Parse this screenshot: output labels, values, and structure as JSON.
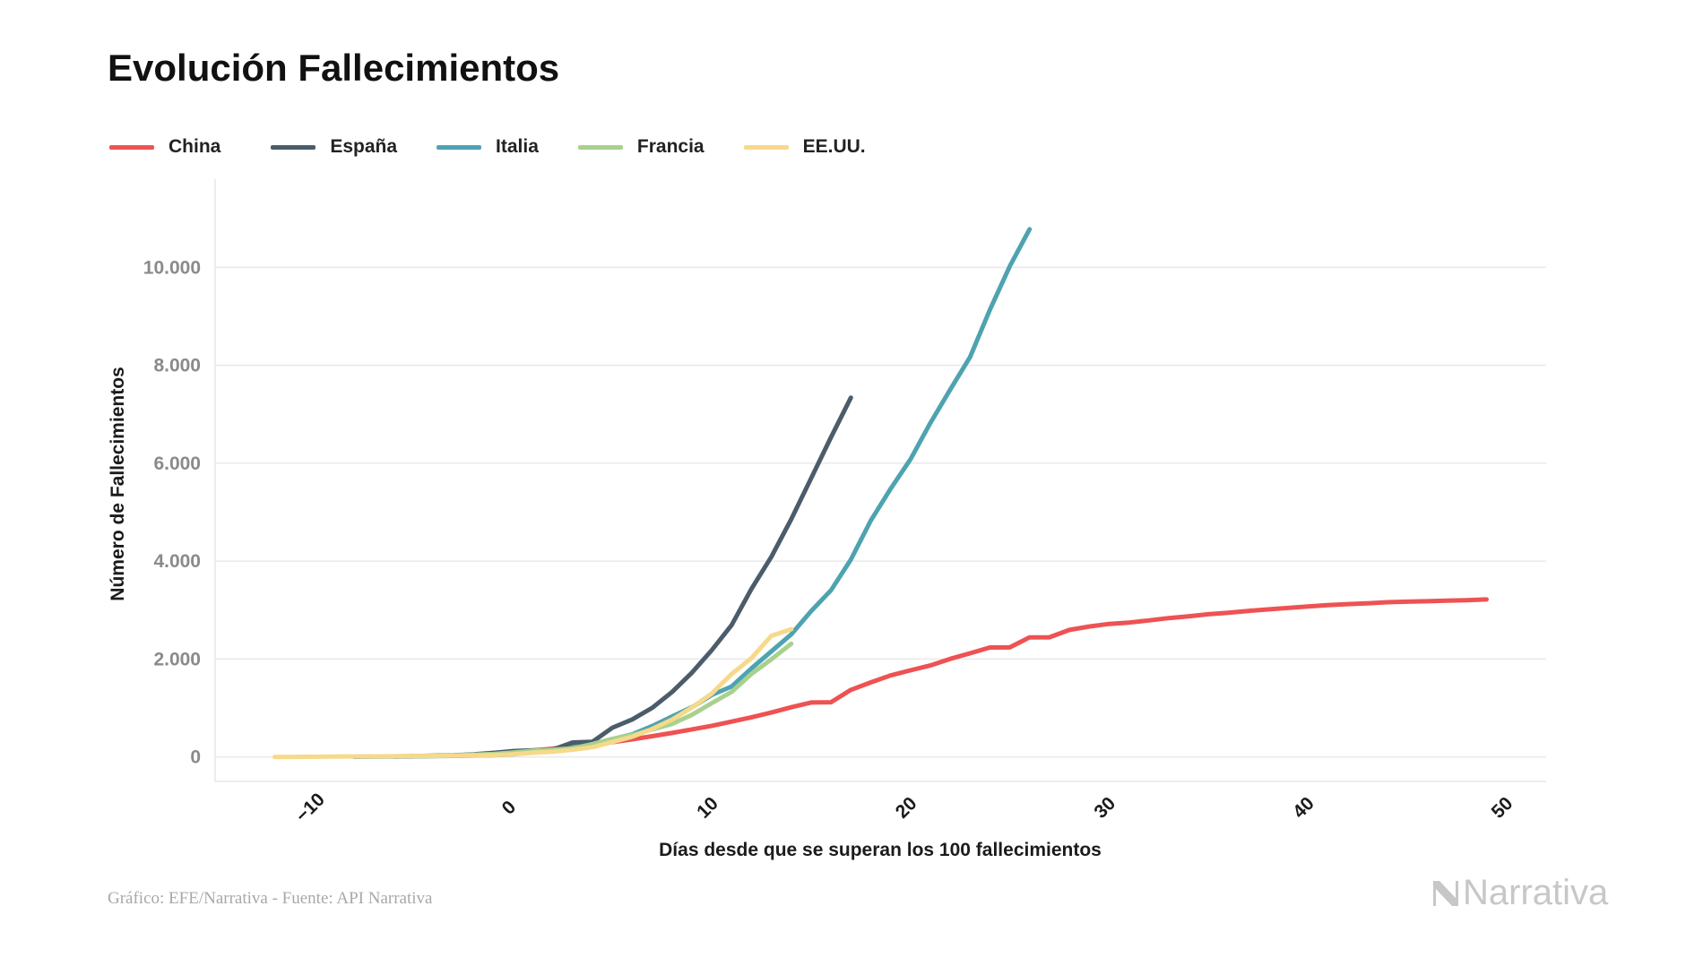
{
  "page": {
    "title": "Evolución Fallecimientos",
    "footer": "Gráfico: EFE/Narrativa - Fuente: API Narrativa",
    "brand": {
      "name": "Narrativa",
      "icon": "narrativa-logo-icon",
      "color": "#c7c7c7"
    }
  },
  "chart_data": {
    "type": "line",
    "title": "Evolución Fallecimientos",
    "xlabel": "Días desde que se superan los 100 fallecimientos",
    "ylabel": "Número de Fallecimientos",
    "xlim": [
      -15,
      52
    ],
    "ylim": [
      -500,
      11800
    ],
    "x_ticks": [
      -10,
      0,
      10,
      20,
      30,
      40,
      50
    ],
    "x_tick_labels": [
      "−10",
      "0",
      "10",
      "20",
      "30",
      "40",
      "50"
    ],
    "y_ticks": [
      0,
      2000,
      4000,
      6000,
      8000,
      10000
    ],
    "y_tick_labels": [
      "0",
      "2.000",
      "4.000",
      "6.000",
      "8.000",
      "10.000"
    ],
    "grid": "horizontal",
    "legend_position": "top-left",
    "series": [
      {
        "name": "China",
        "color": "#ee5253",
        "points": [
          [
            0,
            106
          ],
          [
            1,
            132
          ],
          [
            2,
            170
          ],
          [
            3,
            213
          ],
          [
            4,
            259
          ],
          [
            5,
            304
          ],
          [
            6,
            361
          ],
          [
            7,
            425
          ],
          [
            8,
            490
          ],
          [
            9,
            563
          ],
          [
            10,
            636
          ],
          [
            11,
            722
          ],
          [
            12,
            811
          ],
          [
            13,
            908
          ],
          [
            14,
            1016
          ],
          [
            15,
            1113
          ],
          [
            16,
            1118
          ],
          [
            17,
            1371
          ],
          [
            18,
            1523
          ],
          [
            19,
            1666
          ],
          [
            20,
            1770
          ],
          [
            21,
            1868
          ],
          [
            22,
            2004
          ],
          [
            23,
            2118
          ],
          [
            24,
            2236
          ],
          [
            25,
            2238
          ],
          [
            26,
            2443
          ],
          [
            27,
            2445
          ],
          [
            28,
            2595
          ],
          [
            29,
            2665
          ],
          [
            30,
            2717
          ],
          [
            31,
            2746
          ],
          [
            32,
            2790
          ],
          [
            33,
            2837
          ],
          [
            34,
            2872
          ],
          [
            35,
            2915
          ],
          [
            36,
            2946
          ],
          [
            37,
            2983
          ],
          [
            38,
            3015
          ],
          [
            39,
            3044
          ],
          [
            40,
            3072
          ],
          [
            41,
            3100
          ],
          [
            42,
            3123
          ],
          [
            43,
            3139
          ],
          [
            44,
            3161
          ],
          [
            45,
            3172
          ],
          [
            46,
            3180
          ],
          [
            47,
            3193
          ],
          [
            48,
            3203
          ],
          [
            49,
            3217
          ]
        ]
      },
      {
        "name": "España",
        "color": "#4b5c6b",
        "points": [
          [
            -6,
            10
          ],
          [
            -5,
            17
          ],
          [
            -4,
            28
          ],
          [
            -3,
            35
          ],
          [
            -2,
            54
          ],
          [
            -1,
            84
          ],
          [
            0,
            120
          ],
          [
            1,
            136
          ],
          [
            2,
            150
          ],
          [
            3,
            297
          ],
          [
            4,
            310
          ],
          [
            5,
            598
          ],
          [
            6,
            767
          ],
          [
            7,
            1002
          ],
          [
            8,
            1326
          ],
          [
            9,
            1720
          ],
          [
            10,
            2182
          ],
          [
            11,
            2696
          ],
          [
            12,
            3434
          ],
          [
            13,
            4089
          ],
          [
            14,
            4858
          ],
          [
            15,
            5690
          ],
          [
            16,
            6528
          ],
          [
            17,
            7340
          ]
        ]
      },
      {
        "name": "Italia",
        "color": "#4ea3b0",
        "points": [
          [
            -8,
            3
          ],
          [
            -7,
            7
          ],
          [
            -6,
            10
          ],
          [
            -5,
            12
          ],
          [
            -4,
            17
          ],
          [
            -3,
            21
          ],
          [
            -2,
            29
          ],
          [
            -1,
            34
          ],
          [
            0,
            52
          ],
          [
            1,
            107
          ],
          [
            2,
            148
          ],
          [
            3,
            197
          ],
          [
            4,
            233
          ],
          [
            5,
            366
          ],
          [
            6,
            463
          ],
          [
            7,
            631
          ],
          [
            8,
            827
          ],
          [
            9,
            1016
          ],
          [
            10,
            1266
          ],
          [
            11,
            1441
          ],
          [
            12,
            1809
          ],
          [
            13,
            2158
          ],
          [
            14,
            2503
          ],
          [
            15,
            2978
          ],
          [
            16,
            3405
          ],
          [
            17,
            4032
          ],
          [
            18,
            4825
          ],
          [
            19,
            5476
          ],
          [
            20,
            6077
          ],
          [
            21,
            6820
          ],
          [
            22,
            7503
          ],
          [
            23,
            8165
          ],
          [
            24,
            9134
          ],
          [
            25,
            10023
          ],
          [
            26,
            10779
          ]
        ]
      },
      {
        "name": "Francia",
        "color": "#a9d18e",
        "points": [
          [
            -5,
            16
          ],
          [
            -4,
            19
          ],
          [
            -3,
            30
          ],
          [
            -2,
            48
          ],
          [
            -1,
            61
          ],
          [
            0,
            91
          ],
          [
            1,
            127
          ],
          [
            2,
            148
          ],
          [
            3,
            175
          ],
          [
            4,
            264
          ],
          [
            5,
            372
          ],
          [
            6,
            450
          ],
          [
            7,
            562
          ],
          [
            8,
            674
          ],
          [
            9,
            860
          ],
          [
            10,
            1100
          ],
          [
            11,
            1331
          ],
          [
            12,
            1696
          ],
          [
            13,
            1995
          ],
          [
            14,
            2314
          ]
        ]
      },
      {
        "name": "EE.UU.",
        "color": "#f6d98a",
        "points": [
          [
            -12,
            1
          ],
          [
            -11,
            2
          ],
          [
            -10,
            6
          ],
          [
            -9,
            9
          ],
          [
            -8,
            11
          ],
          [
            -7,
            12
          ],
          [
            -6,
            15
          ],
          [
            -5,
            19
          ],
          [
            -4,
            22
          ],
          [
            -3,
            26
          ],
          [
            -2,
            31
          ],
          [
            -1,
            38
          ],
          [
            0,
            57
          ],
          [
            1,
            85
          ],
          [
            2,
            108
          ],
          [
            3,
            150
          ],
          [
            4,
            200
          ],
          [
            5,
            307
          ],
          [
            6,
            414
          ],
          [
            7,
            573
          ],
          [
            8,
            763
          ],
          [
            9,
            1010
          ],
          [
            10,
            1295
          ],
          [
            11,
            1695
          ],
          [
            12,
            2020
          ],
          [
            13,
            2475
          ],
          [
            14,
            2610
          ]
        ]
      }
    ]
  }
}
